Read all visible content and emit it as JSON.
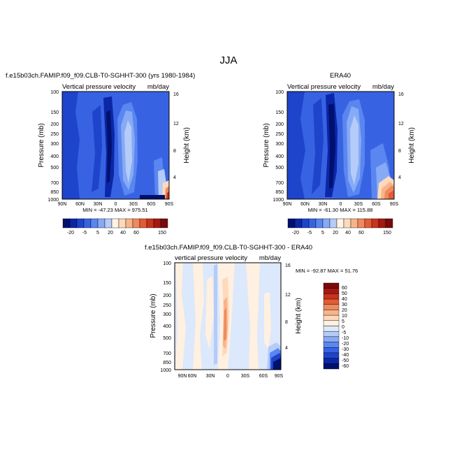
{
  "figure": {
    "title": "JJA"
  },
  "scale_colors": {
    "abs": [
      "#00106e",
      "#0b27a8",
      "#1f44cc",
      "#3763e3",
      "#5986f0",
      "#86aaf5",
      "#b5cbf8",
      "#fff3e6",
      "#fed9bc",
      "#f8b488",
      "#ef8a5e",
      "#e25c36",
      "#c9321c",
      "#a41812",
      "#7a0a0a"
    ],
    "diff": [
      "#00106e",
      "#0b27a8",
      "#1f44cc",
      "#3763e3",
      "#5986f0",
      "#86aaf5",
      "#b5cbf8",
      "#dce8fb",
      "#fff0e1",
      "#fed9bc",
      "#f8b488",
      "#ef8a5e",
      "#e25c36",
      "#c9321c",
      "#a41812",
      "#7a0a0a"
    ]
  },
  "panels": [
    {
      "id": "model",
      "header_left": "f.e15b03ch.FAMIP.f09_f09.CLB-T0-SGHHT-300 (yrs 1980-1984)",
      "header_right": "",
      "subtitle_left": "Vertical pressure velocity",
      "subtitle_right": "mb/day",
      "minmax": "MIN = -47.23   MAX = 975.51",
      "ylabel": "Pressure (mb)",
      "ylabel_right": "Height (km)",
      "yticks": [
        "100",
        "150",
        "200",
        "250",
        "300",
        "400",
        "500",
        "700",
        "850",
        "1000"
      ],
      "height_ticks": [
        "16",
        "12",
        "8",
        "4"
      ],
      "xticks": [
        "90N",
        "60N",
        "30N",
        "0",
        "30S",
        "60S",
        "90S"
      ],
      "colorbar_labels": [
        "-20",
        "-5",
        "5",
        "20",
        "40",
        "60",
        "150"
      ]
    },
    {
      "id": "era40",
      "header_left": "",
      "header_right": "ERA40",
      "subtitle_left": "Vertical pressure velocity",
      "subtitle_right": "mb/day",
      "minmax": "MIN = -61.30   MAX = 115.88",
      "ylabel": "Pressure (mb)",
      "ylabel_right": "Height (km)",
      "yticks": [
        "100",
        "150",
        "200",
        "250",
        "300",
        "400",
        "500",
        "700",
        "850",
        "1000"
      ],
      "height_ticks": [
        "16",
        "12",
        "8",
        "4"
      ],
      "xticks": [
        "90N",
        "60N",
        "30N",
        "0",
        "30S",
        "60S",
        "90S"
      ],
      "colorbar_labels": [
        "-20",
        "-5",
        "5",
        "20",
        "40",
        "60",
        "150"
      ]
    },
    {
      "id": "diff",
      "header_left": "f.e15b03ch.FAMIP.f09_f09.CLB-T0-SGHHT-300 - ERA40",
      "header_right": "",
      "subtitle_left": "vertical pressure velocity",
      "subtitle_right": "mb/day",
      "minmax": "MIN = -92.87   MAX =  51.76",
      "ylabel": "Pressure (mb)",
      "ylabel_right": "Height (km)",
      "yticks": [
        "100",
        "150",
        "200",
        "250",
        "300",
        "400",
        "500",
        "700",
        "850",
        "1000"
      ],
      "height_ticks": [
        "16",
        "12",
        "8",
        "4"
      ],
      "xticks": [
        "90N",
        "60N",
        "30N",
        "0",
        "30S",
        "60S",
        "90S"
      ],
      "colorbar_labels": [
        "60",
        "50",
        "40",
        "30",
        "20",
        "10",
        "5",
        "0",
        "-5",
        "-10",
        "-20",
        "-30",
        "-40",
        "-50",
        "-60"
      ]
    }
  ],
  "chart_data": [
    {
      "type": "heatmap",
      "title": "f.e15b03ch.FAMIP.f09_f09.CLB-T0-SGHHT-300 (yrs 1980-1984)",
      "subtitle": "Vertical pressure velocity",
      "units": "mb/day",
      "xlabel": "",
      "ylabel": "Pressure (mb)",
      "ylabel_right": "Height (km)",
      "x_ticks": [
        "90N",
        "60N",
        "30N",
        "0",
        "30S",
        "60S",
        "90S"
      ],
      "y_ticks": [
        100,
        150,
        200,
        250,
        300,
        400,
        500,
        700,
        850,
        1000
      ],
      "y_scale": "log",
      "min": -47.23,
      "max": 975.51,
      "contour_levels": [
        -20,
        -15,
        -10,
        -5,
        0,
        5,
        10,
        20,
        30,
        40,
        50,
        60,
        80,
        100,
        150
      ],
      "colorbar_labels": [
        -20,
        -5,
        5,
        20,
        40,
        60,
        150
      ],
      "features": "deep upward motion (negative) near 10-15N over the full column; broad weak descent (positive, light) near 20-30S; strong positive values at the surface near 80-90S"
    },
    {
      "type": "heatmap",
      "title": "ERA40",
      "subtitle": "Vertical pressure velocity",
      "units": "mb/day",
      "xlabel": "",
      "ylabel": "Pressure (mb)",
      "ylabel_right": "Height (km)",
      "x_ticks": [
        "90N",
        "60N",
        "30N",
        "0",
        "30S",
        "60S",
        "90S"
      ],
      "y_ticks": [
        100,
        150,
        200,
        250,
        300,
        400,
        500,
        700,
        850,
        1000
      ],
      "y_scale": "log",
      "min": -61.3,
      "max": 115.88,
      "contour_levels": [
        -20,
        -15,
        -10,
        -5,
        0,
        5,
        10,
        20,
        30,
        40,
        50,
        60,
        80,
        100,
        150
      ],
      "colorbar_labels": [
        -20,
        -5,
        5,
        20,
        40,
        60,
        150
      ],
      "features": "upward motion core near 5-15N; subsidence near 20-30S; positive maximum at low levels near 70-90S"
    },
    {
      "type": "heatmap",
      "title": "f.e15b03ch.FAMIP.f09_f09.CLB-T0-SGHHT-300 - ERA40",
      "subtitle": "vertical pressure velocity",
      "units": "mb/day",
      "xlabel": "",
      "ylabel": "Pressure (mb)",
      "ylabel_right": "Height (km)",
      "x_ticks": [
        "90N",
        "60N",
        "30N",
        "0",
        "30S",
        "60S",
        "90S"
      ],
      "y_ticks": [
        100,
        150,
        200,
        250,
        300,
        400,
        500,
        700,
        850,
        1000
      ],
      "y_scale": "log",
      "min": -92.87,
      "max": 51.76,
      "contour_levels": [
        -60,
        -50,
        -40,
        -30,
        -20,
        -10,
        -5,
        0,
        5,
        10,
        20,
        30,
        40,
        50,
        60
      ],
      "colorbar_labels": [
        60,
        50,
        40,
        30,
        20,
        10,
        5,
        0,
        -5,
        -10,
        -20,
        -30,
        -40,
        -50,
        -60
      ],
      "features": "differences mostly within -5 to 5; positive band near 5-10N; strong negative near the surface at 80-90S"
    }
  ]
}
